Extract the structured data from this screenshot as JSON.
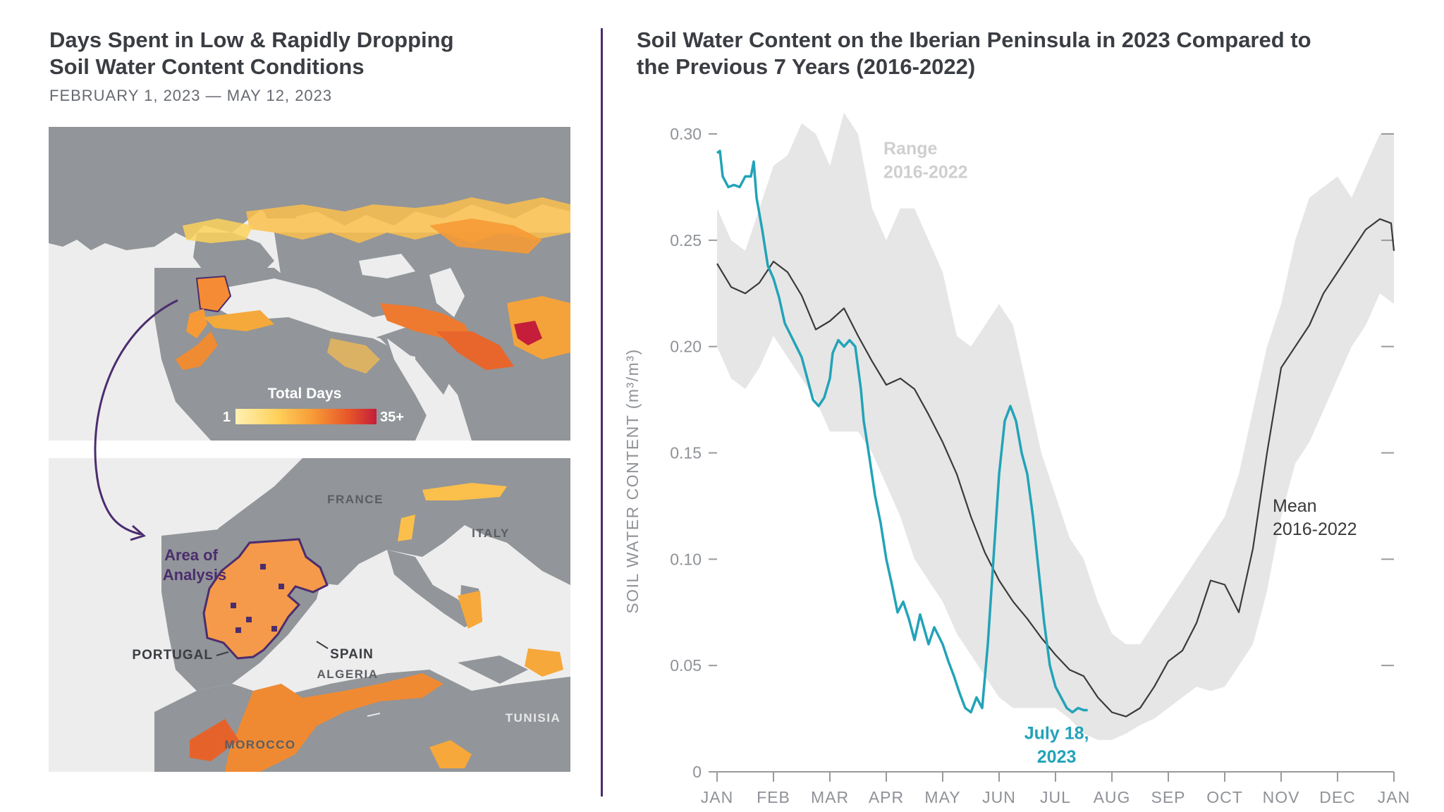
{
  "left_panel": {
    "title_line1": "Days Spent in Low & Rapidly Dropping",
    "title_line2": "Soil Water Content Conditions",
    "subtitle": "FEBRUARY 1, 2023 — MAY 12, 2023",
    "legend": {
      "title": "Total Days",
      "min_label": "1",
      "max_label": "35+",
      "colors": [
        "#fff1b3",
        "#ffd05a",
        "#f79a36",
        "#e8562a",
        "#c41e3a"
      ]
    },
    "zoom_map": {
      "area_label_line1": "Area of",
      "area_label_line2": "Analysis",
      "labels": {
        "france": "FRANCE",
        "italy": "ITALY",
        "spain": "SPAIN",
        "portugal": "PORTUGAL",
        "algeria": "ALGERIA",
        "tunisia": "TUNISIA",
        "morocco": "MOROCCO"
      }
    },
    "colors": {
      "land": "#929599",
      "water": "#ededed",
      "outline": "#4b2d6e"
    }
  },
  "right_panel": {
    "title_line1": "Soil Water Content on the Iberian Peninsula in 2023 Compared to",
    "title_line2": "the Previous 7 Years (2016-2022)"
  },
  "chart_data": {
    "type": "line",
    "ylabel": "SOIL WATER CONTENT (m³/m³)",
    "ylim": [
      0,
      0.3
    ],
    "yticks": [
      0,
      0.05,
      0.1,
      0.15,
      0.2,
      0.25,
      0.3
    ],
    "ytick_labels": [
      "0",
      "0.05",
      "0.10",
      "0.15",
      "0.20",
      "0.25",
      "0.30"
    ],
    "xlim": [
      0,
      12
    ],
    "xticks": [
      0,
      1,
      2,
      3,
      4,
      5,
      6,
      7,
      8,
      9,
      10,
      11,
      12
    ],
    "xtick_labels": [
      "JAN",
      "FEB",
      "MAR",
      "APR",
      "MAY",
      "JUN",
      "JUL",
      "AUG",
      "SEP",
      "OCT",
      "NOV",
      "DEC",
      "JAN"
    ],
    "series": [
      {
        "name": "Range 2016-2022",
        "label_line1": "Range",
        "label_line2": "2016-2022",
        "kind": "band",
        "color": "#e6e6e6",
        "label_color": "#cfcfcf",
        "x": [
          0,
          0.25,
          0.5,
          0.75,
          1.0,
          1.25,
          1.5,
          1.75,
          2.0,
          2.25,
          2.5,
          2.75,
          3.0,
          3.25,
          3.5,
          3.75,
          4.0,
          4.25,
          4.5,
          4.75,
          5.0,
          5.25,
          5.5,
          5.75,
          6.0,
          6.25,
          6.5,
          6.75,
          7.0,
          7.25,
          7.5,
          7.75,
          8.0,
          8.25,
          8.5,
          8.75,
          9.0,
          9.25,
          9.5,
          9.75,
          10.0,
          10.25,
          10.5,
          10.75,
          11.0,
          11.25,
          11.5,
          11.75,
          12.0
        ],
        "upper": [
          0.265,
          0.25,
          0.245,
          0.265,
          0.285,
          0.29,
          0.305,
          0.3,
          0.285,
          0.31,
          0.3,
          0.265,
          0.25,
          0.265,
          0.265,
          0.25,
          0.235,
          0.205,
          0.2,
          0.21,
          0.22,
          0.21,
          0.18,
          0.15,
          0.13,
          0.11,
          0.1,
          0.08,
          0.065,
          0.06,
          0.06,
          0.07,
          0.08,
          0.09,
          0.1,
          0.11,
          0.12,
          0.14,
          0.17,
          0.2,
          0.22,
          0.25,
          0.27,
          0.275,
          0.28,
          0.27,
          0.285,
          0.3,
          0.3
        ],
        "lower": [
          0.2,
          0.185,
          0.18,
          0.19,
          0.205,
          0.195,
          0.185,
          0.175,
          0.16,
          0.16,
          0.16,
          0.15,
          0.135,
          0.12,
          0.1,
          0.09,
          0.08,
          0.065,
          0.055,
          0.045,
          0.035,
          0.03,
          0.03,
          0.03,
          0.03,
          0.025,
          0.018,
          0.015,
          0.015,
          0.018,
          0.022,
          0.025,
          0.03,
          0.035,
          0.04,
          0.038,
          0.04,
          0.05,
          0.06,
          0.085,
          0.12,
          0.145,
          0.155,
          0.17,
          0.185,
          0.2,
          0.21,
          0.225,
          0.22
        ]
      },
      {
        "name": "Mean 2016-2022",
        "label_line1": "Mean",
        "label_line2": "2016-2022",
        "kind": "line",
        "color": "#3a3a3a",
        "x": [
          0,
          0.25,
          0.5,
          0.75,
          1.0,
          1.25,
          1.5,
          1.75,
          2.0,
          2.25,
          2.5,
          2.75,
          3.0,
          3.25,
          3.5,
          3.75,
          4.0,
          4.25,
          4.5,
          4.75,
          5.0,
          5.25,
          5.5,
          5.75,
          6.0,
          6.25,
          6.5,
          6.75,
          7.0,
          7.25,
          7.5,
          7.75,
          8.0,
          8.25,
          8.5,
          8.75,
          9.0,
          9.25,
          9.5,
          9.75,
          10.0,
          10.25,
          10.5,
          10.75,
          11.0,
          11.25,
          11.5,
          11.75,
          11.95,
          12.0
        ],
        "y": [
          0.239,
          0.228,
          0.225,
          0.23,
          0.24,
          0.235,
          0.224,
          0.208,
          0.212,
          0.218,
          0.205,
          0.193,
          0.182,
          0.185,
          0.18,
          0.168,
          0.155,
          0.14,
          0.12,
          0.103,
          0.09,
          0.08,
          0.072,
          0.063,
          0.055,
          0.048,
          0.045,
          0.035,
          0.028,
          0.026,
          0.03,
          0.04,
          0.052,
          0.057,
          0.07,
          0.09,
          0.088,
          0.075,
          0.105,
          0.15,
          0.19,
          0.2,
          0.21,
          0.225,
          0.235,
          0.245,
          0.255,
          0.26,
          0.258,
          0.245
        ]
      },
      {
        "name": "2023",
        "kind": "line",
        "color": "#22a3b8",
        "end_label_line1": "July 18,",
        "end_label_line2": "2023",
        "x": [
          0,
          0.05,
          0.1,
          0.2,
          0.3,
          0.4,
          0.5,
          0.6,
          0.65,
          0.7,
          0.8,
          0.9,
          1.0,
          1.1,
          1.2,
          1.35,
          1.5,
          1.6,
          1.7,
          1.8,
          1.9,
          2.0,
          2.05,
          2.15,
          2.25,
          2.35,
          2.45,
          2.55,
          2.6,
          2.7,
          2.8,
          2.9,
          3.0,
          3.1,
          3.2,
          3.3,
          3.4,
          3.5,
          3.6,
          3.75,
          3.85,
          4.0,
          4.1,
          4.2,
          4.3,
          4.4,
          4.5,
          4.6,
          4.7,
          4.8,
          4.9,
          5.0,
          5.1,
          5.2,
          5.3,
          5.4,
          5.5,
          5.6,
          5.7,
          5.8,
          5.9,
          6.0,
          6.1,
          6.2,
          6.3,
          6.4,
          6.5,
          6.57
        ],
        "y": [
          0.291,
          0.292,
          0.28,
          0.275,
          0.276,
          0.275,
          0.28,
          0.28,
          0.287,
          0.27,
          0.255,
          0.238,
          0.232,
          0.223,
          0.211,
          0.203,
          0.195,
          0.185,
          0.175,
          0.172,
          0.176,
          0.185,
          0.197,
          0.203,
          0.2,
          0.203,
          0.2,
          0.18,
          0.165,
          0.148,
          0.13,
          0.117,
          0.1,
          0.088,
          0.075,
          0.08,
          0.072,
          0.062,
          0.074,
          0.06,
          0.068,
          0.06,
          0.052,
          0.045,
          0.037,
          0.03,
          0.028,
          0.035,
          0.03,
          0.06,
          0.1,
          0.14,
          0.165,
          0.172,
          0.165,
          0.15,
          0.14,
          0.12,
          0.095,
          0.07,
          0.05,
          0.04,
          0.035,
          0.03,
          0.028,
          0.03,
          0.029,
          0.029
        ]
      }
    ]
  }
}
